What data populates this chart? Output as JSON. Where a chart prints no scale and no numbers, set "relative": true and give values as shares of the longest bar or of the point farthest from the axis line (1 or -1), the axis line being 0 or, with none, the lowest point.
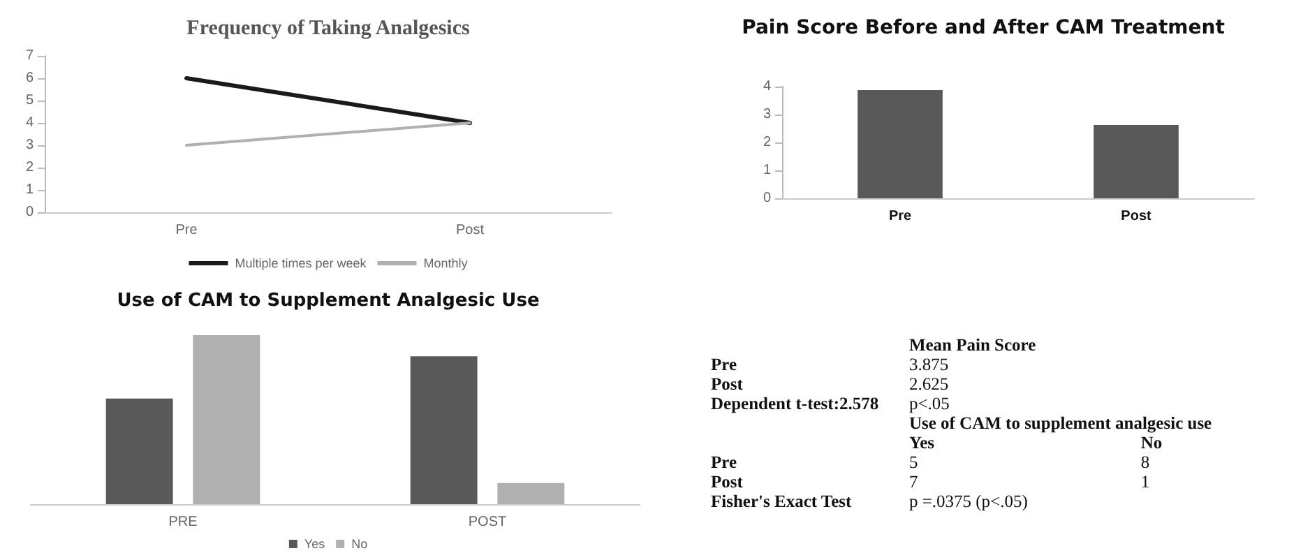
{
  "chart_data": [
    {
      "type": "line",
      "title": "Frequency of Taking Analgesics",
      "categories": [
        "Pre",
        "Post"
      ],
      "series": [
        {
          "name": "Multiple times per week",
          "color": "#1a1a1a",
          "values": [
            6,
            4
          ]
        },
        {
          "name": "Monthly",
          "color": "#b0b0b0",
          "values": [
            3,
            4
          ]
        }
      ],
      "ylim": [
        0,
        7
      ],
      "yticks": [
        0,
        1,
        2,
        3,
        4,
        5,
        6,
        7
      ],
      "grid": false,
      "legend": "bottom",
      "marker": "none",
      "line_style": "solid"
    },
    {
      "type": "bar",
      "title": "Pain Score Before and After CAM Treatment",
      "categories": [
        "Pre",
        "Post"
      ],
      "series": [
        {
          "color": "#595959",
          "values": [
            3.875,
            2.625
          ]
        }
      ],
      "ylim": [
        0,
        4
      ],
      "yticks": [
        0,
        1,
        2,
        3,
        4
      ],
      "grid": false
    },
    {
      "type": "bar",
      "title": "Use of CAM to Supplement Analgesic Use",
      "categories": [
        "PRE",
        "POST"
      ],
      "relative": true,
      "series": [
        {
          "name": "Yes",
          "color": "#595959",
          "values": [
            0.625,
            0.875
          ]
        },
        {
          "name": "No",
          "color": "#b0b0b0",
          "values": [
            1,
            0.125
          ]
        }
      ],
      "grid": false,
      "legend": "bottom"
    },
    {
      "type": "other",
      "annotations": [
        "Mean Pain Score",
        "Pre",
        "3.875",
        "Post",
        "2.625",
        "Dependent t-test:2.578",
        "p<.05",
        "Use of CAM to supplement analgesic use",
        "Yes",
        "No",
        "Pre",
        "5",
        "8",
        "Post",
        "7",
        "1",
        "Fisher's Exact Test",
        "p =.0375 (p<.05)"
      ]
    }
  ]
}
